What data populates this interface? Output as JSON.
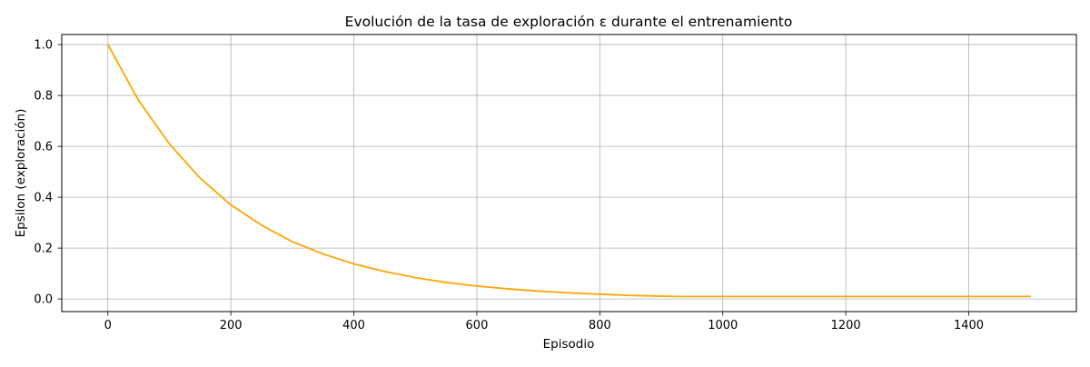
{
  "chart_data": {
    "type": "line",
    "title": "Evolución de la tasa de exploración ε durante el entrenamiento",
    "xlabel": "Episodio",
    "ylabel": "Epsilon (exploración)",
    "xlim": [
      -75,
      1575
    ],
    "ylim": [
      -0.0495,
      1.0395
    ],
    "xticks": [
      0,
      200,
      400,
      600,
      800,
      1000,
      1200,
      1400
    ],
    "yticks": [
      0.0,
      0.2,
      0.4,
      0.6,
      0.8,
      1.0
    ],
    "xtick_labels": [
      "0",
      "200",
      "400",
      "600",
      "800",
      "1000",
      "1200",
      "1400"
    ],
    "ytick_labels": [
      "0.0",
      "0.2",
      "0.4",
      "0.6",
      "0.8",
      "1.0"
    ],
    "grid": true,
    "series": [
      {
        "color": "#FFA500",
        "x": [
          0,
          50,
          100,
          150,
          200,
          250,
          300,
          350,
          400,
          450,
          500,
          550,
          600,
          650,
          700,
          750,
          800,
          850,
          900,
          925,
          1000,
          1100,
          1200,
          1300,
          1400,
          1500
        ],
        "y": [
          1.0,
          0.78,
          0.61,
          0.475,
          0.37,
          0.29,
          0.225,
          0.177,
          0.138,
          0.108,
          0.084,
          0.065,
          0.051,
          0.04,
          0.031,
          0.024,
          0.019,
          0.014,
          0.011,
          0.01,
          0.01,
          0.01,
          0.01,
          0.01,
          0.01,
          0.01
        ]
      }
    ]
  }
}
